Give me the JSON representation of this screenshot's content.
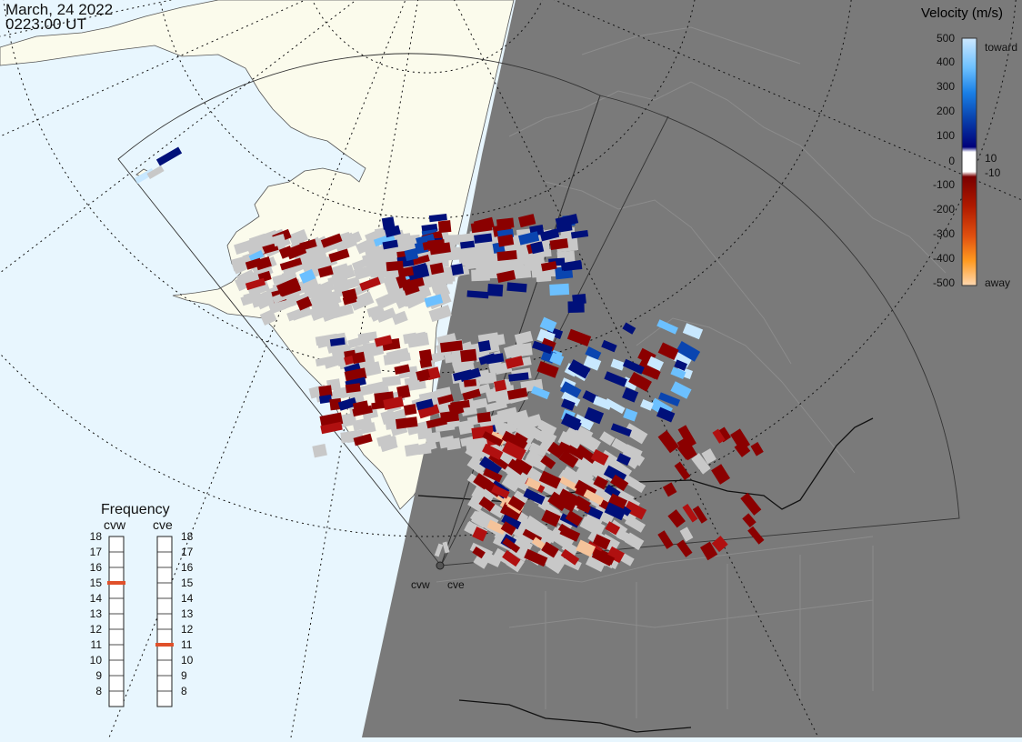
{
  "header": {
    "date": "March, 24 2022",
    "time": "0223:00 UT"
  },
  "colors": {
    "ocean": "#e8f6fe",
    "land_day": "#fbfbec",
    "night": "#7a7a7a",
    "scatter_gray": "#c8c8c8",
    "freq_marker": "#e0502a"
  },
  "velocity_scale": {
    "title": "Velocity (m/s)",
    "toward_label": "toward",
    "away_label": "away",
    "tick_labels": [
      "500",
      "400",
      "300",
      "200",
      "100",
      "10",
      "0",
      "-10",
      "-100",
      "-200",
      "-300",
      "-400",
      "-500"
    ]
  },
  "frequency": {
    "title": "Frequency",
    "radars": [
      {
        "name": "cvw",
        "selected_mhz": 15
      },
      {
        "name": "cve",
        "selected_mhz": 11
      }
    ],
    "tick_labels": [
      "18",
      "17",
      "16",
      "15",
      "14",
      "13",
      "12",
      "11",
      "10",
      "9",
      "8"
    ]
  },
  "radar_sites": [
    {
      "label": "cvw"
    },
    {
      "label": "cve"
    }
  ]
}
